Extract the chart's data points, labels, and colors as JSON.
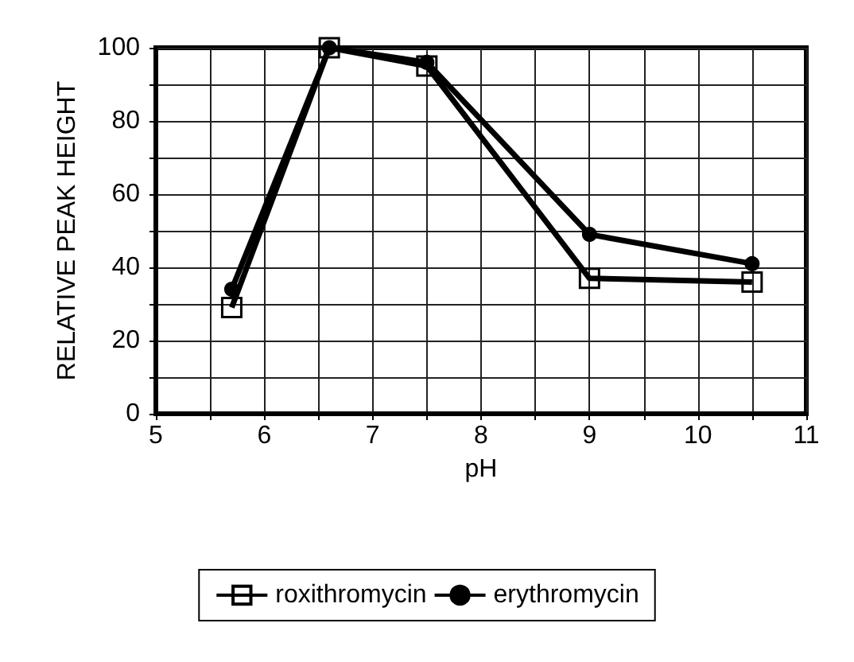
{
  "chart_data": {
    "type": "line",
    "xlabel": "pH",
    "ylabel": "RELATIVE PEAK HEIGHT",
    "x": [
      5.7,
      6.6,
      7.5,
      9,
      10.5
    ],
    "series": [
      {
        "name": "roxithromycin",
        "color": "#000000",
        "marker": "square",
        "values": [
          29,
          100,
          95,
          37,
          36
        ]
      },
      {
        "name": "erythromycin",
        "color": "#000000",
        "marker": "circle",
        "values": [
          34,
          100,
          96,
          49,
          41
        ]
      }
    ],
    "xlim": [
      5,
      11
    ],
    "xticks": [
      5,
      {
        "value": 5.5,
        "label": null
      },
      6,
      {
        "value": 6.5,
        "label": null
      },
      7,
      {
        "value": 7.5,
        "label": null
      },
      8,
      {
        "value": 8.5,
        "label": null
      },
      9,
      {
        "value": 9.5,
        "label": null
      },
      10,
      {
        "value": 10.5,
        "label": null
      },
      11
    ],
    "ylim": [
      0,
      100
    ],
    "yticks": [
      0,
      {
        "value": 10,
        "label": null
      },
      20,
      {
        "value": 30,
        "label": null
      },
      40,
      {
        "value": 50,
        "label": null
      },
      60,
      {
        "value": 70,
        "label": null
      },
      80,
      {
        "value": 90,
        "label": null
      },
      100
    ],
    "grid": true,
    "legend": "bottom",
    "line_style": "solid"
  }
}
